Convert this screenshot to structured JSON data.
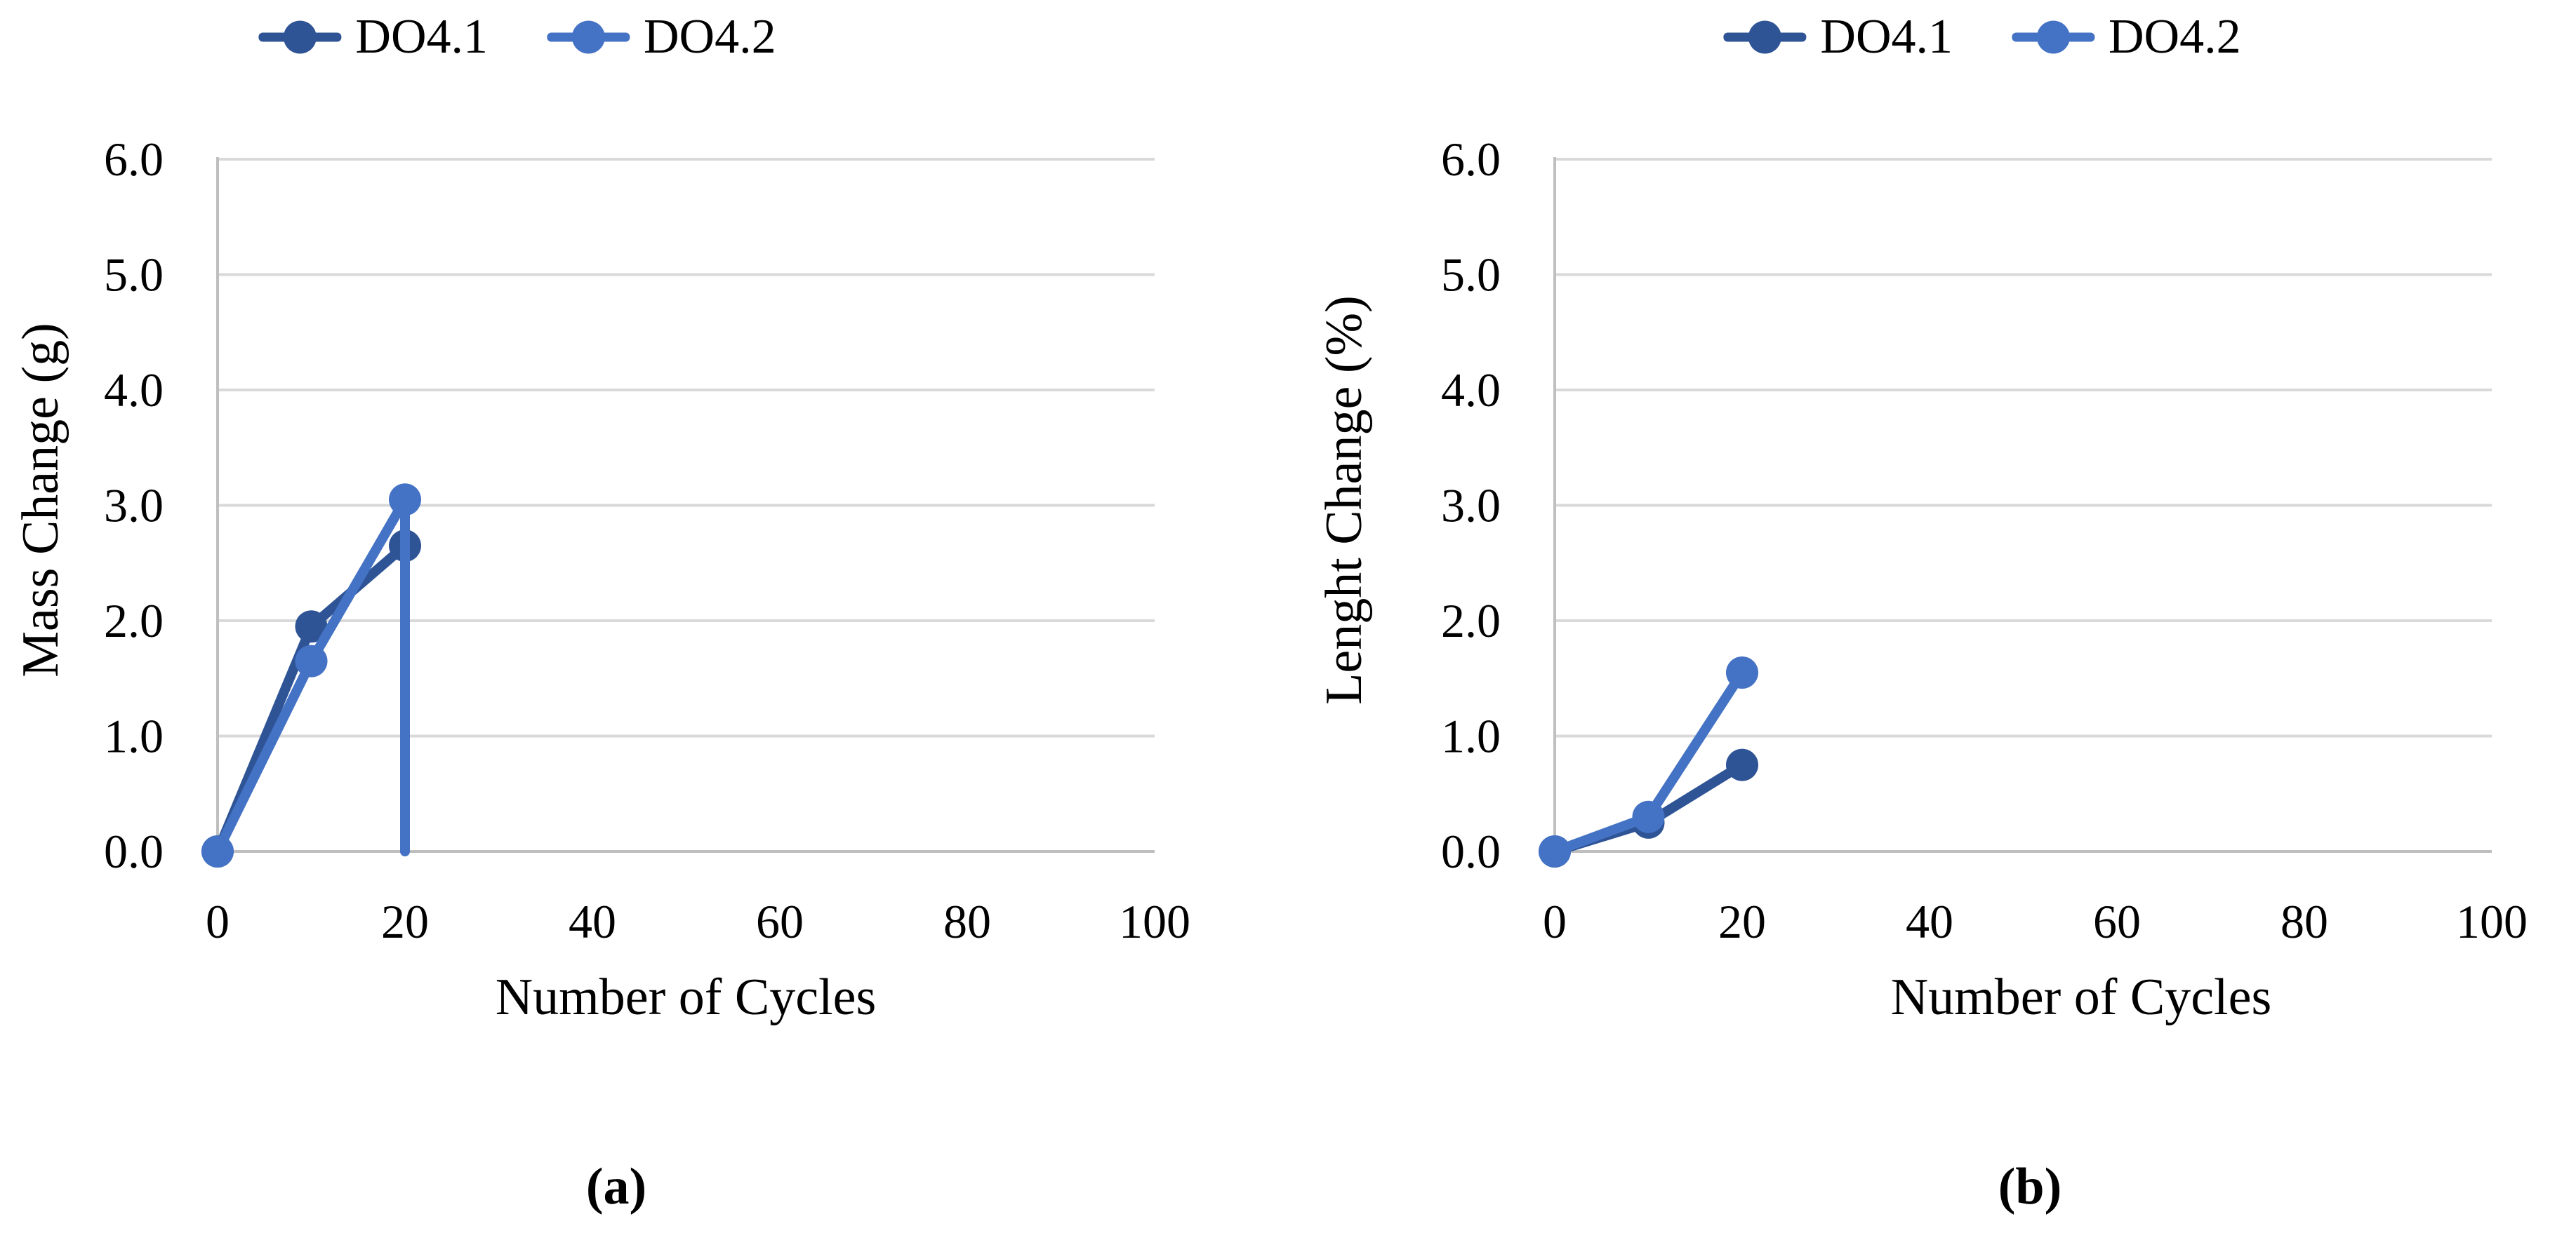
{
  "figure": {
    "description": "Two-panel scientific line chart figure",
    "background": "#ffffff"
  },
  "colors": {
    "series_do41": "#2F5496",
    "series_do42": "#4472C4",
    "gridline": "#D9D9D9",
    "axis_line": "#BFBFBF",
    "text": "#000000"
  },
  "chart_data": [
    {
      "id": "a",
      "type": "line",
      "caption": "(a)",
      "xlabel": "Number of Cycles",
      "ylabel": "Mass Change (g)",
      "xlim": [
        0,
        100
      ],
      "ylim": [
        0,
        6
      ],
      "xticks": [
        0,
        20,
        40,
        60,
        80,
        100
      ],
      "yticks": [
        "0.0",
        "1.0",
        "2.0",
        "3.0",
        "4.0",
        "5.0",
        "6.0"
      ],
      "grid": "horizontal only",
      "legend_position": "top-center",
      "series": [
        {
          "name": "DO4.1",
          "color": "#2F5496",
          "x": [
            0,
            10,
            20
          ],
          "y": [
            0,
            1.95,
            2.65
          ]
        },
        {
          "name": "DO4.2",
          "color": "#4472C4",
          "x": [
            0,
            10,
            20,
            20
          ],
          "y": [
            0,
            1.65,
            3.05,
            0
          ],
          "last_point_marker": false,
          "note": "line drops vertically back to 0 at 20 cycles with no end marker"
        }
      ]
    },
    {
      "id": "b",
      "type": "line",
      "caption": "(b)",
      "xlabel": "Number of Cycles",
      "ylabel": "Lenght Change (%)",
      "xlim": [
        0,
        100
      ],
      "ylim": [
        0,
        6
      ],
      "xticks": [
        0,
        20,
        40,
        60,
        80,
        100
      ],
      "yticks": [
        "0.0",
        "1.0",
        "2.0",
        "3.0",
        "4.0",
        "5.0",
        "6.0"
      ],
      "grid": "horizontal only",
      "legend_position": "top-center",
      "series": [
        {
          "name": "DO4.1",
          "color": "#2F5496",
          "x": [
            0,
            10,
            20
          ],
          "y": [
            0,
            0.25,
            0.75
          ]
        },
        {
          "name": "DO4.2",
          "color": "#4472C4",
          "x": [
            0,
            10,
            20
          ],
          "y": [
            0,
            0.3,
            1.55
          ]
        }
      ]
    }
  ]
}
